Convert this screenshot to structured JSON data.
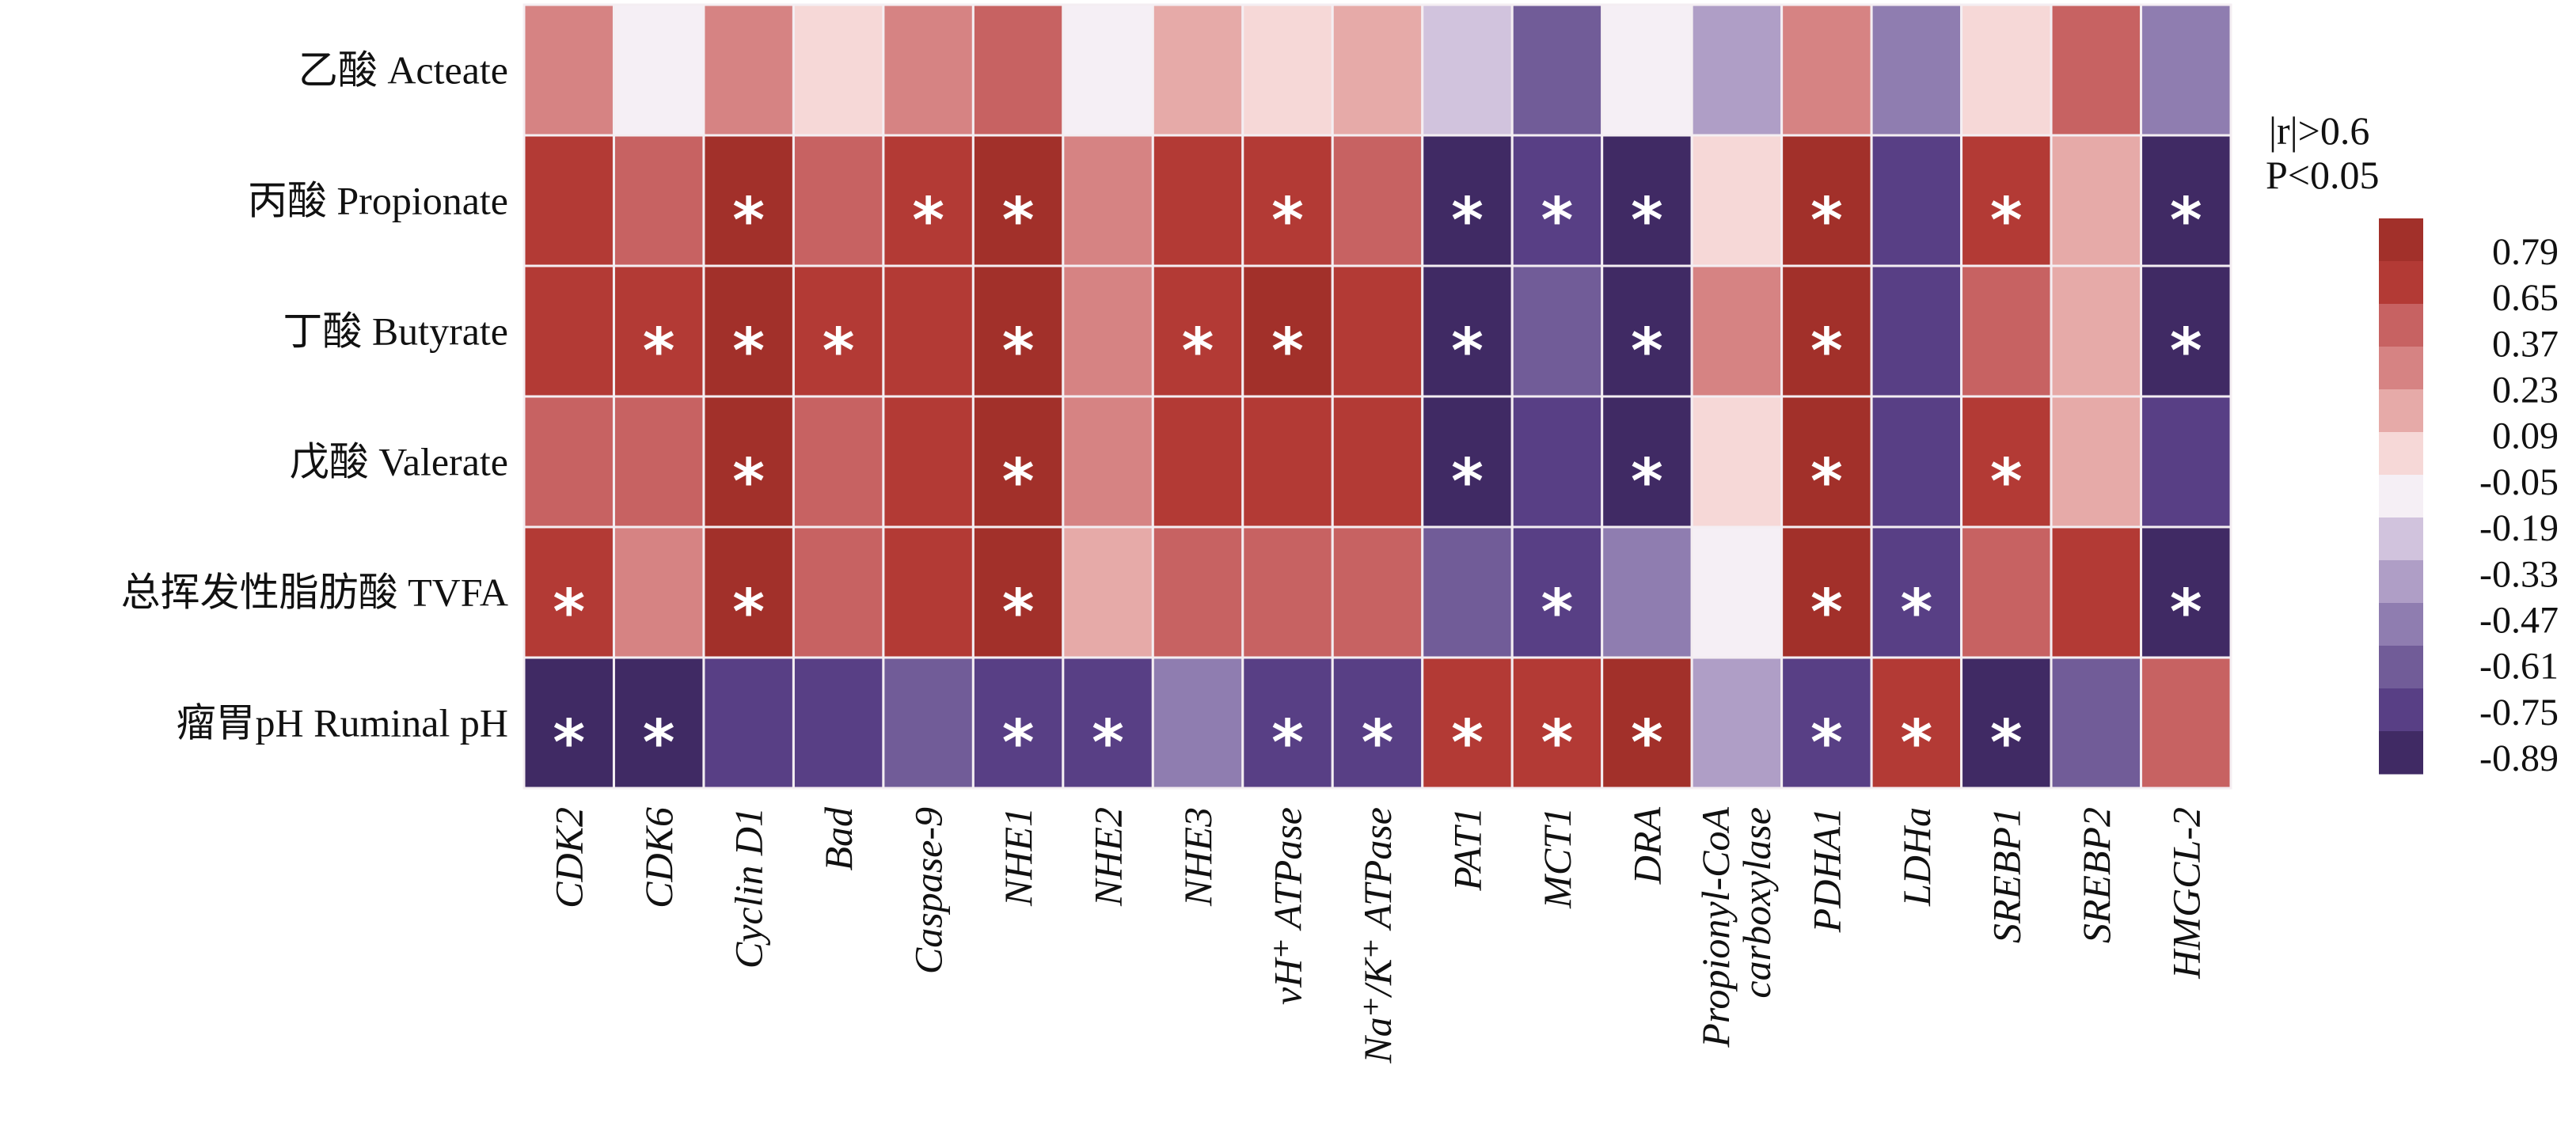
{
  "chart_data": {
    "type": "heatmap",
    "rows": [
      "乙酸 Acteate",
      "丙酸 Propionate",
      "丁酸 Butyrate",
      "戊酸 Valerate",
      "总挥发性脂肪酸 TVFA",
      "瘤胃pH Ruminal pH"
    ],
    "columns": [
      "CDK2",
      "CDK6",
      "Cyclin D1",
      "Bad",
      "Caspase-9",
      "NHE1",
      "NHE2",
      "NHE3",
      "vH⁺ ATPase",
      "Na⁺/K⁺ ATPase",
      "PAT1",
      "MCT1",
      "DRA",
      "Propionyl-CoA\ncarboxylase",
      "PDHA1",
      "LDHa",
      "SREBP1",
      "SREBP2",
      "HMGCL-2"
    ],
    "values": [
      [
        0.3,
        -0.12,
        0.3,
        0.02,
        0.3,
        0.5,
        -0.12,
        0.16,
        0.02,
        0.16,
        -0.26,
        -0.68,
        -0.12,
        -0.4,
        0.3,
        -0.54,
        0.02,
        0.5,
        -0.54
      ],
      [
        0.72,
        0.5,
        0.85,
        0.5,
        0.72,
        0.85,
        0.3,
        0.72,
        0.72,
        0.5,
        -0.92,
        -0.82,
        -0.92,
        0.02,
        0.85,
        -0.82,
        0.72,
        0.16,
        -0.92
      ],
      [
        0.72,
        0.72,
        0.85,
        0.72,
        0.72,
        0.85,
        0.3,
        0.72,
        0.85,
        0.72,
        -0.92,
        -0.68,
        -0.92,
        0.3,
        0.85,
        -0.82,
        0.5,
        0.16,
        -0.92
      ],
      [
        0.5,
        0.5,
        0.85,
        0.5,
        0.72,
        0.85,
        0.3,
        0.72,
        0.72,
        0.72,
        -0.92,
        -0.82,
        -0.92,
        0.02,
        0.85,
        -0.82,
        0.72,
        0.16,
        -0.82
      ],
      [
        0.72,
        0.3,
        0.85,
        0.5,
        0.72,
        0.85,
        0.16,
        0.5,
        0.5,
        0.5,
        -0.68,
        -0.82,
        -0.54,
        -0.12,
        0.85,
        -0.82,
        0.5,
        0.72,
        -0.92
      ],
      [
        -0.92,
        -0.92,
        -0.82,
        -0.82,
        -0.68,
        -0.82,
        -0.82,
        -0.54,
        -0.82,
        -0.82,
        0.72,
        0.72,
        0.85,
        -0.4,
        -0.82,
        0.72,
        -0.92,
        -0.68,
        0.5
      ]
    ],
    "significant": [
      [
        0,
        0,
        0,
        0,
        0,
        0,
        0,
        0,
        0,
        0,
        0,
        0,
        0,
        0,
        0,
        0,
        0,
        0,
        0
      ],
      [
        0,
        0,
        1,
        0,
        1,
        1,
        0,
        0,
        1,
        0,
        1,
        1,
        1,
        0,
        1,
        0,
        1,
        0,
        1
      ],
      [
        0,
        1,
        1,
        1,
        0,
        1,
        0,
        1,
        1,
        0,
        1,
        0,
        1,
        0,
        1,
        0,
        0,
        0,
        1
      ],
      [
        0,
        0,
        1,
        0,
        0,
        1,
        0,
        0,
        0,
        0,
        1,
        0,
        1,
        0,
        1,
        0,
        1,
        0,
        0
      ],
      [
        1,
        0,
        1,
        0,
        0,
        1,
        0,
        0,
        0,
        0,
        0,
        1,
        0,
        0,
        1,
        1,
        0,
        0,
        1
      ],
      [
        1,
        1,
        0,
        0,
        0,
        1,
        1,
        0,
        1,
        1,
        1,
        1,
        1,
        0,
        1,
        1,
        1,
        0,
        0
      ]
    ],
    "significance_marker": "*",
    "legend_title": [
      "|r|>0.6",
      "P<0.05"
    ],
    "colorbar": {
      "ticks": [
        "0.79",
        "0.65",
        "0.37",
        "0.23",
        "0.09",
        "-0.05",
        "-0.19",
        "-0.33",
        "-0.47",
        "-0.61",
        "-0.75",
        "-0.89"
      ],
      "colors": [
        "#A2302A",
        "#B33A35",
        "#C76262",
        "#D68383",
        "#E6AAA8",
        "#F6D8D7",
        "#F5EFF5",
        "#D1C3DD",
        "#AF9EC6",
        "#8F7DB0",
        "#715C98",
        "#583F85",
        "#402A64"
      ]
    },
    "legend_placement": "right"
  }
}
